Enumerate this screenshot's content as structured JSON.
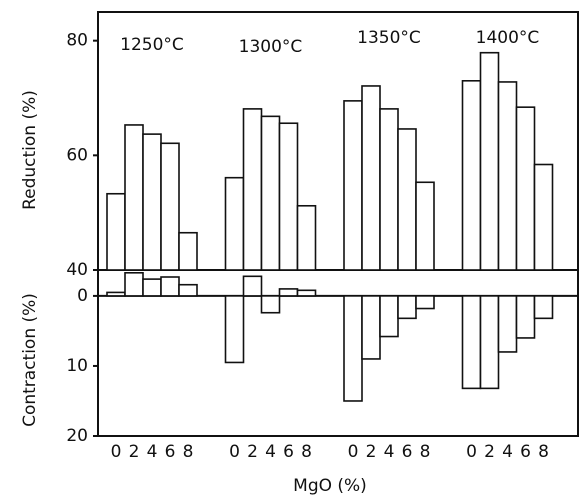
{
  "chart_data": [
    {
      "type": "bar",
      "ylabel": "Reduction (%)",
      "ylim": [
        40,
        85
      ],
      "yticks": [
        40,
        60,
        80
      ],
      "series": [
        {
          "name": "1250°C",
          "color": "#ffffff",
          "values": [
            53.3,
            65.3,
            63.7,
            62.1,
            46.5
          ]
        },
        {
          "name": "1300°C",
          "color": "#ffffff",
          "values": [
            56.1,
            68.1,
            66.8,
            65.6,
            51.2
          ]
        },
        {
          "name": "1350°C",
          "color": "#ffffff",
          "values": [
            69.5,
            72.1,
            68.1,
            64.6,
            55.3
          ]
        },
        {
          "name": "1400°C",
          "color": "#ffffff",
          "values": [
            73.0,
            77.9,
            72.8,
            68.4,
            58.4
          ]
        }
      ]
    },
    {
      "type": "bar",
      "ylabel": "Contraction (%)",
      "ylim": [
        -3.7,
        20
      ],
      "inverted": true,
      "yticks": [
        0,
        10,
        20
      ],
      "xlabel": "MgO (%)",
      "categories": [
        "0",
        "2",
        "4",
        "6",
        "8"
      ],
      "series": [
        {
          "color": "#ffffff",
          "values": [
            -0.5,
            -3.3,
            -2.4,
            -2.7,
            -1.6
          ]
        },
        {
          "color": "#ffffff",
          "values": [
            9.5,
            -2.8,
            2.4,
            -1,
            -0.8
          ]
        },
        {
          "color": "#ffffff",
          "values": [
            15,
            9,
            5.8,
            3.2,
            1.8
          ]
        },
        {
          "color": "#ffffff",
          "values": [
            13.2,
            13.2,
            8,
            6,
            3.2
          ]
        }
      ]
    }
  ]
}
